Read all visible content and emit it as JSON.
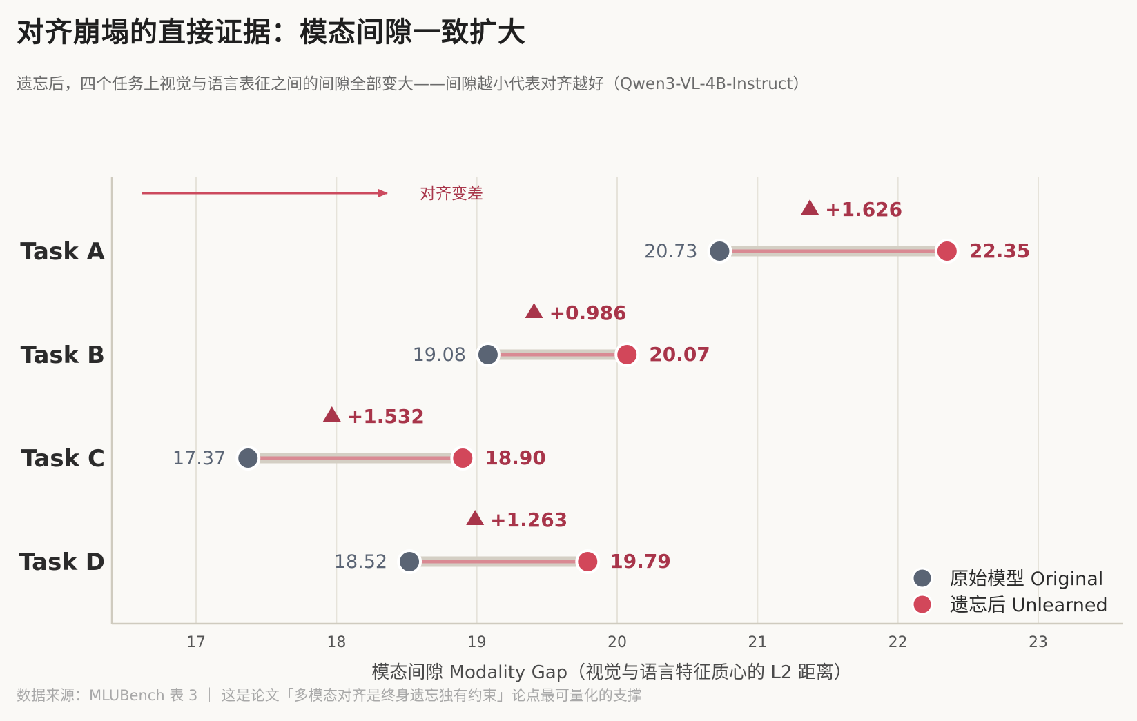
{
  "header": {
    "title": "对齐崩塌的直接证据：模态间隙一致扩大",
    "subtitle": "遗忘后，四个任务上视觉与语言表征之间的间隙全部变大——间隙越小代表对齐越好（Qwen3-VL-4B-Instruct）"
  },
  "footer": {
    "source": "数据来源：MLUBench 表 3 ｜ 这是论文「多模态对齐是终身遗忘独有约束」论点最可量化的支撑"
  },
  "annotation": {
    "arrow_label": "对齐变差"
  },
  "colors": {
    "original": "#5a6474",
    "unlearned": "#d2475a",
    "delta_text": "#a8354a",
    "connector": "#d4cfc4",
    "connector_inner": "#d98a93",
    "grid": "#e6e3da",
    "axis": "#cfcbbf",
    "arrow": "#cc4a5e"
  },
  "chart_data": {
    "type": "dumbbell",
    "xlabel": "模态间隙  Modality Gap（视觉与语言特征质心的 L2 距离）",
    "xlim": [
      16.4,
      23.6
    ],
    "xticks": [
      17,
      18,
      19,
      20,
      21,
      22,
      23
    ],
    "grid": "vertical",
    "legend_position": "bottom-right",
    "categories": [
      "Task A",
      "Task B",
      "Task C",
      "Task D"
    ],
    "series": [
      {
        "name": "原始模型 Original",
        "values": [
          20.73,
          19.08,
          17.37,
          18.52
        ],
        "labels": [
          "20.73",
          "19.08",
          "17.37",
          "18.52"
        ]
      },
      {
        "name": "遗忘后 Unlearned",
        "values": [
          22.35,
          20.07,
          18.9,
          19.79
        ],
        "labels": [
          "22.35",
          "20.07",
          "18.90",
          "19.79"
        ]
      }
    ],
    "deltas": [
      "+1.626",
      "+0.986",
      "+1.532",
      "+1.263"
    ]
  }
}
